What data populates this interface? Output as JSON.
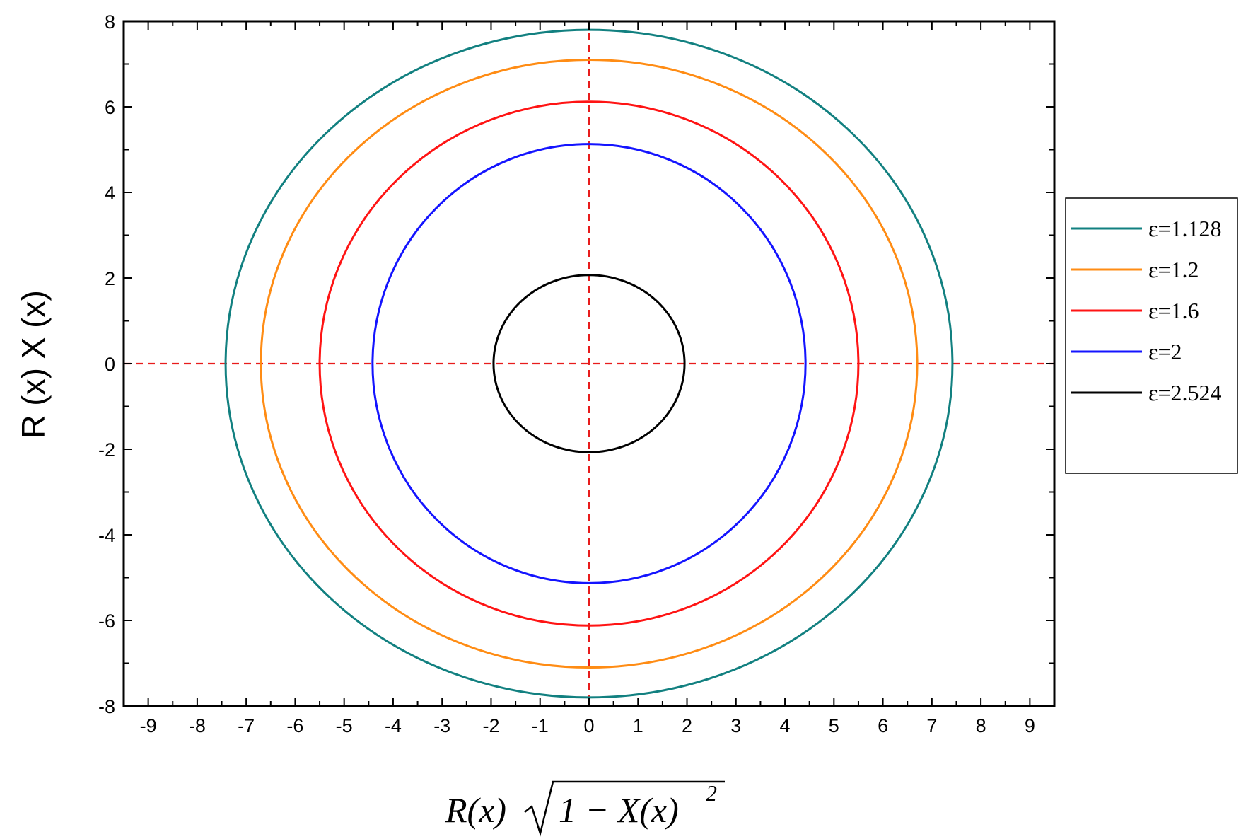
{
  "chart_data": {
    "type": "line",
    "title": "",
    "xlabel": "R(x)√(1 − X(x)²)",
    "xlabel_parts": {
      "base": "R(x)",
      "radicand": "1 − X(x)",
      "exponent": "2"
    },
    "ylabel": "R (x) X (x)",
    "xlim": [
      -9.5,
      9.5
    ],
    "ylim": [
      -8,
      8
    ],
    "xticks": [
      -9,
      -8,
      -7,
      -6,
      -5,
      -4,
      -3,
      -2,
      -1,
      0,
      1,
      2,
      3,
      4,
      5,
      6,
      7,
      8,
      9
    ],
    "yticks": [
      -8,
      -6,
      -4,
      -2,
      0,
      2,
      4,
      6,
      8
    ],
    "grid": false,
    "legend_position": "right, outside plot",
    "reference_lines": {
      "x": 0,
      "y": 0,
      "color": "#e81c1c",
      "style": "dashed"
    },
    "series": [
      {
        "name": "ε=1.128",
        "color": "#128080",
        "rx": 7.42,
        "ry": 7.8
      },
      {
        "name": "ε=1.2",
        "color": "#ff8c14",
        "rx": 6.7,
        "ry": 7.1
      },
      {
        "name": "ε=1.6",
        "color": "#ff1414",
        "rx": 5.5,
        "ry": 6.12
      },
      {
        "name": "ε=2",
        "color": "#1414ff",
        "rx": 4.42,
        "ry": 5.13
      },
      {
        "name": "ε=2.524",
        "color": "#000000",
        "rx": 1.95,
        "ry": 2.07
      }
    ]
  }
}
